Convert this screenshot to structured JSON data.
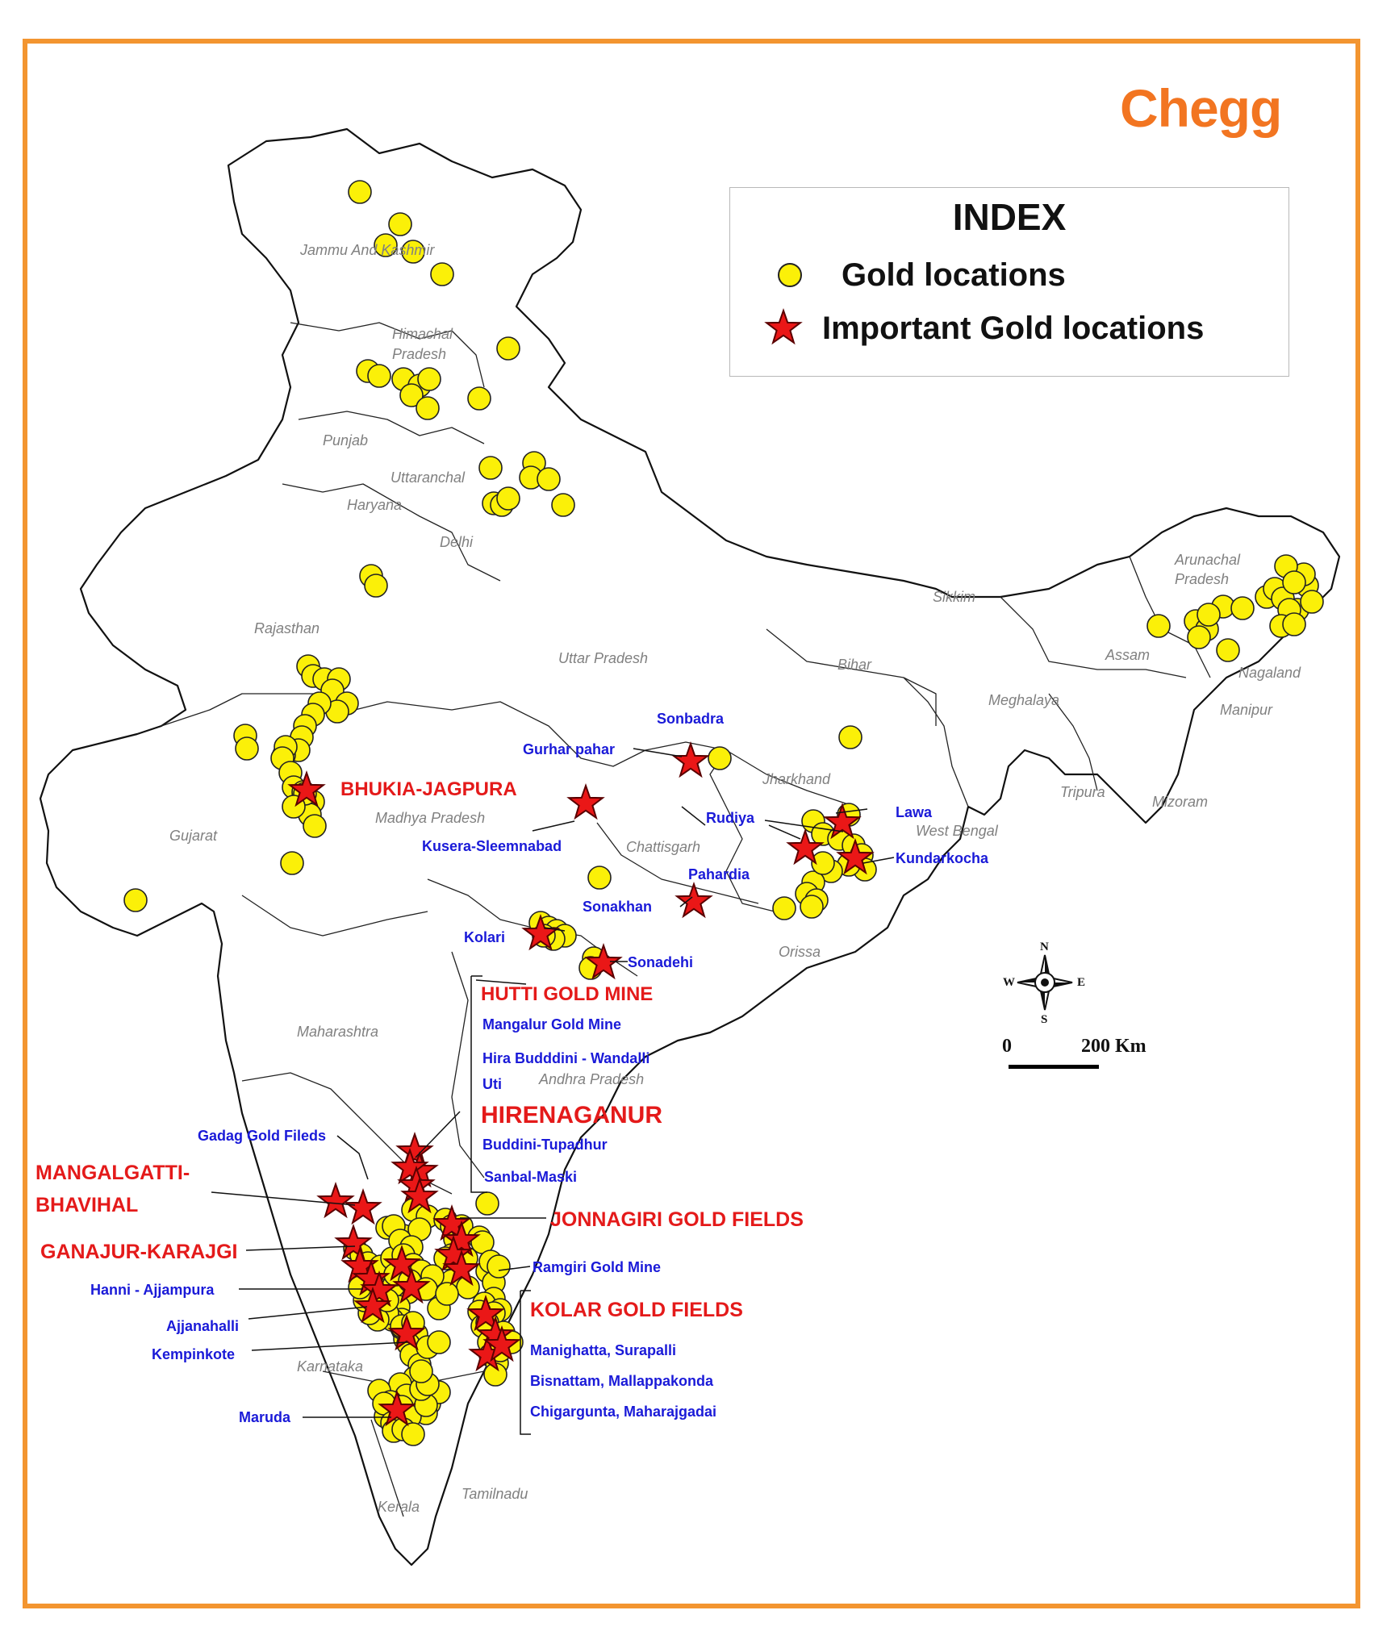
{
  "brand": "Chegg",
  "legend": {
    "title": "INDEX",
    "gold_label": "Gold locations",
    "important_label": "Important Gold locations"
  },
  "colors": {
    "frame": "#f39530",
    "brand": "#f27521",
    "gold_marker": "#fbf008",
    "important_marker": "#ea1717",
    "red_label": "#e41a1a",
    "blue_label": "#1a1ad8",
    "state_label": "#808080"
  },
  "compass": {
    "n": "N",
    "s": "S",
    "e": "E",
    "w": "W"
  },
  "scale": {
    "zero": "0",
    "distance": "200 Km"
  },
  "states": [
    "Jammu And Kashmir",
    "Himachal",
    "Pradesh",
    "Punjab",
    "Uttaranchal",
    "Haryana",
    "Delhi",
    "Rajasthan",
    "Uttar Pradesh",
    "Bihar",
    "Sikkim",
    "Arunachal",
    "Pradesh",
    "Assam",
    "Nagaland",
    "Meghalaya",
    "Manipur",
    "Jharkhand",
    "West Bengal",
    "Tripura",
    "Mizoram",
    "Gujarat",
    "Madhya Pradesh",
    "Chattisgarh",
    "Orissa",
    "Maharashtra",
    "Andhra Pradesh",
    "Karnataka",
    "Kerala",
    "Tamilnadu"
  ],
  "red_labels": [
    "BHUKIA-JAGPURA",
    "HUTTI GOLD MINE",
    "HIRENAGANUR",
    "MANGALGATTI-",
    "BHAVIHAL",
    "GANAJUR-KARAJGI",
    "JONNAGIRI GOLD FIELDS",
    "KOLAR GOLD FIELDS"
  ],
  "blue_labels": [
    "Sonbadra",
    "Gurhar pahar",
    "Kusera-Sleemnabad",
    "Rudiya",
    "Lawa",
    "Kundarkocha",
    "Pahardia",
    "Sonakhan",
    "Kolari",
    "Sonadehi",
    "Mangalur Gold Mine",
    "Hira Budddini - Wandalli",
    "Uti",
    "Buddini-Tupadhur",
    "Sanbal-Maski",
    "Gadag Gold Fileds",
    "Ramgiri Gold Mine",
    "Hanni - Ajjampura",
    "Ajjanahalli",
    "Kempinkote",
    "Manighatta, Surapalli",
    "Bisnattam, Mallappakonda",
    "Chigargunta, Maharajgadai",
    "Maruda"
  ]
}
